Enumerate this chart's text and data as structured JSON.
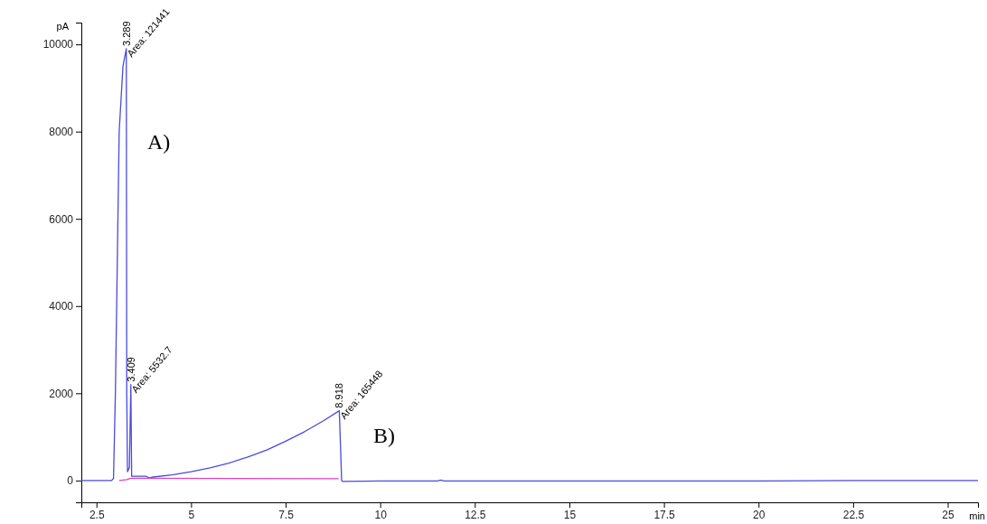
{
  "chart_data": {
    "type": "line",
    "xlabel": "min",
    "ylabel": "pA",
    "xlim": [
      2.1,
      25.8
    ],
    "ylim": [
      -500,
      10500
    ],
    "xticks": [
      2.5,
      5,
      7.5,
      10,
      12.5,
      15,
      17.5,
      20,
      22.5,
      25
    ],
    "yticks": [
      0,
      2000,
      4000,
      6000,
      8000,
      10000
    ],
    "grid": false,
    "series": [
      {
        "color": "#4a4ae0",
        "x": [
          2.1,
          2.9,
          2.95,
          3.0,
          3.05,
          3.1,
          3.2,
          3.289,
          3.3,
          3.32,
          3.37,
          3.409,
          3.43,
          3.5,
          3.8,
          3.85,
          3.9,
          4.0,
          4.5,
          5,
          5.5,
          6,
          6.5,
          7,
          7.5,
          8,
          8.5,
          8.918,
          8.95,
          8.98,
          9,
          10,
          11.5,
          11.6,
          11.7,
          15,
          20,
          22.5,
          25.8
        ],
        "values": [
          0,
          0,
          50,
          2000,
          5000,
          8000,
          9500,
          9900,
          2000,
          200,
          300,
          2200,
          100,
          100,
          100,
          80,
          60,
          80,
          130,
          200,
          290,
          400,
          540,
          700,
          900,
          1120,
          1370,
          1600,
          800,
          0,
          -20,
          -10,
          -10,
          10,
          -10,
          -10,
          -10,
          0,
          0
        ]
      },
      {
        "color": "#e040c0",
        "x": [
          3.1,
          3.3,
          3.4,
          3.9,
          8.9
        ],
        "values": [
          0,
          20,
          50,
          50,
          40
        ]
      }
    ],
    "annotations": [
      {
        "text": "3.289",
        "x": 3.289,
        "y": 9900
      },
      {
        "text": "Area: 121441",
        "x": 3.289,
        "y": 9900
      },
      {
        "text": "3.409",
        "x": 3.409,
        "y": 2200
      },
      {
        "text": "Area: 5532.7",
        "x": 3.409,
        "y": 2200
      },
      {
        "text": "8.918",
        "x": 8.918,
        "y": 1600
      },
      {
        "text": "Area: 165448",
        "x": 8.918,
        "y": 1600
      },
      "A)",
      "B)"
    ]
  }
}
